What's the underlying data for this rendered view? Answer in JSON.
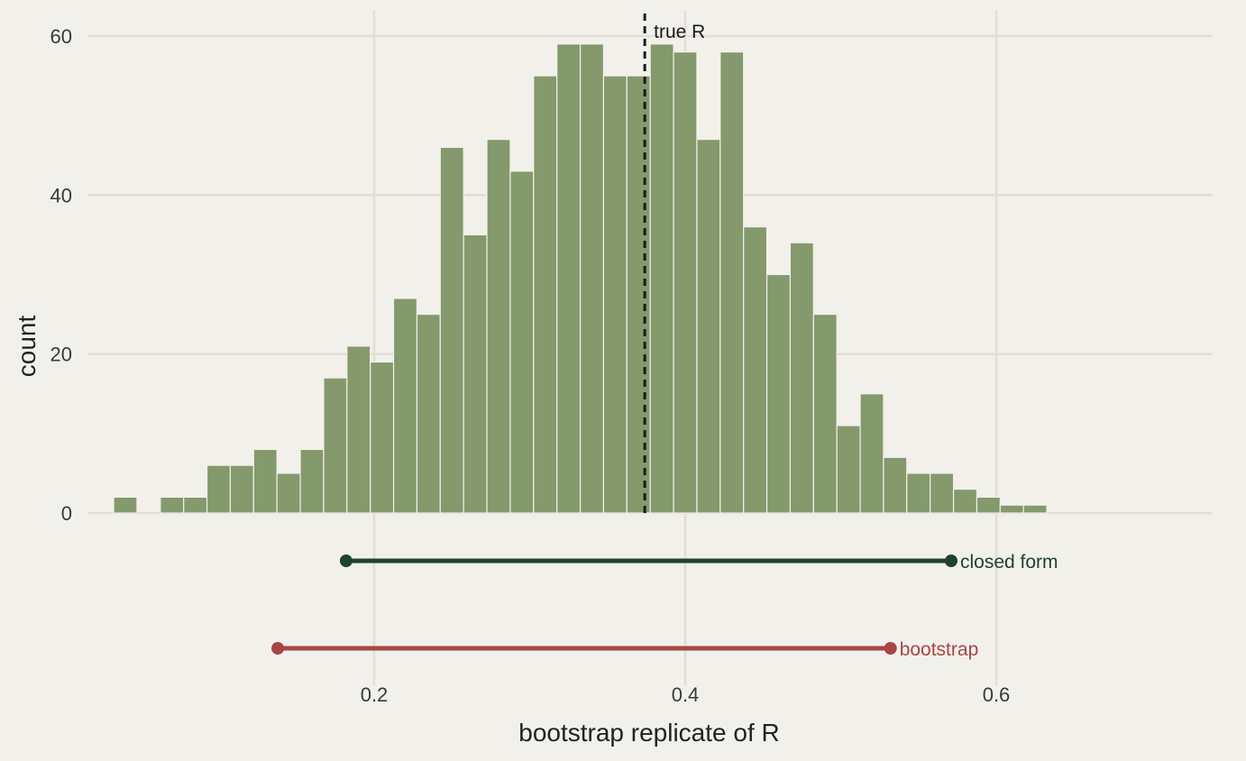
{
  "chart_data": {
    "type": "bar",
    "xlabel": "bootstrap replicate of R",
    "ylabel": "count",
    "x_ticks": [
      0.2,
      0.4,
      0.6
    ],
    "x_tick_labels": [
      "0.2",
      "0.4",
      "0.6"
    ],
    "y_ticks": [
      0,
      20,
      40,
      60
    ],
    "y_tick_labels": [
      "0",
      "20",
      "40",
      "60"
    ],
    "xlim": [
      0.02,
      0.74
    ],
    "ylim": [
      0,
      63
    ],
    "bin_width": 0.015,
    "bin_start": 0.0325,
    "counts": [
      2,
      0,
      2,
      2,
      6,
      6,
      8,
      5,
      8,
      17,
      21,
      19,
      27,
      25,
      46,
      35,
      47,
      43,
      55,
      59,
      59,
      55,
      55,
      59,
      58,
      47,
      58,
      36,
      30,
      34,
      25,
      11,
      15,
      7,
      5,
      5,
      3,
      2,
      1,
      1
    ],
    "bar_color": "#84996c",
    "grid": true,
    "reference_line": {
      "x": 0.374,
      "label": "true R",
      "color": "#1a1a1a"
    },
    "intervals": [
      {
        "name": "closed form",
        "low": 0.182,
        "high": 0.571,
        "color": "#23412f"
      },
      {
        "name": "bootstrap",
        "low": 0.138,
        "high": 0.532,
        "color": "#a84545"
      }
    ]
  }
}
